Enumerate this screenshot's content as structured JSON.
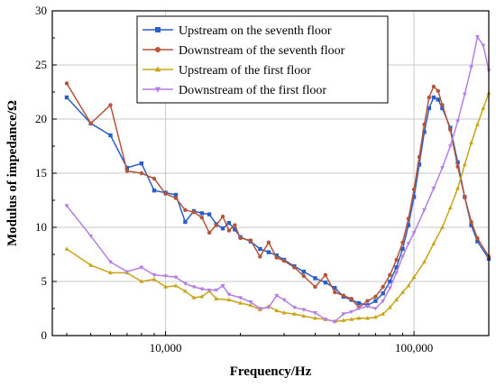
{
  "chart_data": {
    "type": "line",
    "xscale": "log",
    "xlim": [
      3500,
      200000
    ],
    "ylim": [
      0,
      30
    ],
    "xlabel": "Frequency/Hz",
    "ylabel": "Modulus of impedance/Ω",
    "x_ticks": [
      {
        "value": 10000,
        "label": "10,000"
      },
      {
        "value": 100000,
        "label": "100,000"
      }
    ],
    "y_ticks": [
      0,
      5,
      10,
      15,
      20,
      25,
      30
    ],
    "grid": true,
    "legend_position": "top-right",
    "series": [
      {
        "name": "Upstream on the seventh floor",
        "color": "#2a5fc8",
        "marker": "square",
        "points": [
          [
            4000,
            22.0
          ],
          [
            5000,
            19.6
          ],
          [
            6000,
            18.5
          ],
          [
            7000,
            15.5
          ],
          [
            8000,
            15.9
          ],
          [
            9000,
            13.4
          ],
          [
            10000,
            13.2
          ],
          [
            11000,
            13.0
          ],
          [
            12000,
            10.5
          ],
          [
            13000,
            11.5
          ],
          [
            14000,
            11.3
          ],
          [
            15000,
            11.2
          ],
          [
            16000,
            10.3
          ],
          [
            17000,
            9.9
          ],
          [
            18000,
            10.4
          ],
          [
            19000,
            9.8
          ],
          [
            20000,
            9.1
          ],
          [
            22000,
            8.7
          ],
          [
            24000,
            8.0
          ],
          [
            26000,
            7.7
          ],
          [
            28000,
            7.4
          ],
          [
            30000,
            7.0
          ],
          [
            33000,
            6.4
          ],
          [
            36000,
            5.9
          ],
          [
            40000,
            5.3
          ],
          [
            44000,
            4.9
          ],
          [
            48000,
            4.4
          ],
          [
            52000,
            3.6
          ],
          [
            56000,
            3.3
          ],
          [
            60000,
            3.0
          ],
          [
            65000,
            2.8
          ],
          [
            70000,
            3.2
          ],
          [
            75000,
            3.9
          ],
          [
            80000,
            5.0
          ],
          [
            85000,
            6.3
          ],
          [
            90000,
            8.0
          ],
          [
            95000,
            10.2
          ],
          [
            100000,
            12.8
          ],
          [
            105000,
            15.8
          ],
          [
            110000,
            18.8
          ],
          [
            115000,
            21.0
          ],
          [
            120000,
            22.0
          ],
          [
            125000,
            21.8
          ],
          [
            130000,
            21.0
          ],
          [
            140000,
            19.2
          ],
          [
            150000,
            16.0
          ],
          [
            160000,
            12.8
          ],
          [
            170000,
            10.2
          ],
          [
            180000,
            8.7
          ],
          [
            200000,
            7.1
          ]
        ]
      },
      {
        "name": "Downstream of the seventh floor",
        "color": "#b4553a",
        "marker": "circle",
        "points": [
          [
            4000,
            23.3
          ],
          [
            5000,
            19.6
          ],
          [
            6000,
            21.3
          ],
          [
            7000,
            15.2
          ],
          [
            8000,
            15.0
          ],
          [
            9000,
            14.5
          ],
          [
            10000,
            13.1
          ],
          [
            11000,
            12.7
          ],
          [
            12000,
            11.6
          ],
          [
            13000,
            11.4
          ],
          [
            14000,
            10.9
          ],
          [
            15000,
            9.5
          ],
          [
            16000,
            10.2
          ],
          [
            17000,
            11.0
          ],
          [
            18000,
            9.7
          ],
          [
            19000,
            10.2
          ],
          [
            20000,
            9.0
          ],
          [
            22000,
            8.8
          ],
          [
            24000,
            7.3
          ],
          [
            26000,
            8.6
          ],
          [
            28000,
            7.2
          ],
          [
            30000,
            6.9
          ],
          [
            33000,
            6.3
          ],
          [
            36000,
            5.5
          ],
          [
            40000,
            4.5
          ],
          [
            44000,
            5.6
          ],
          [
            48000,
            4.0
          ],
          [
            52000,
            3.7
          ],
          [
            56000,
            3.4
          ],
          [
            60000,
            2.6
          ],
          [
            65000,
            3.2
          ],
          [
            70000,
            3.6
          ],
          [
            75000,
            4.5
          ],
          [
            80000,
            5.6
          ],
          [
            85000,
            7.0
          ],
          [
            90000,
            8.6
          ],
          [
            95000,
            10.8
          ],
          [
            100000,
            13.5
          ],
          [
            105000,
            16.5
          ],
          [
            110000,
            19.5
          ],
          [
            115000,
            22.0
          ],
          [
            120000,
            23.0
          ],
          [
            125000,
            22.6
          ],
          [
            130000,
            21.3
          ],
          [
            140000,
            19.0
          ],
          [
            150000,
            15.6
          ],
          [
            160000,
            12.8
          ],
          [
            170000,
            10.5
          ],
          [
            180000,
            9.0
          ],
          [
            200000,
            7.3
          ]
        ]
      },
      {
        "name": "Upstream of the first floor",
        "color": "#c8a419",
        "marker": "triangle",
        "points": [
          [
            4000,
            8.0
          ],
          [
            5000,
            6.5
          ],
          [
            6000,
            5.8
          ],
          [
            7000,
            5.8
          ],
          [
            8000,
            5.0
          ],
          [
            9000,
            5.2
          ],
          [
            10000,
            4.5
          ],
          [
            11000,
            4.6
          ],
          [
            12000,
            4.1
          ],
          [
            13000,
            3.5
          ],
          [
            14000,
            3.6
          ],
          [
            15000,
            4.1
          ],
          [
            16000,
            3.4
          ],
          [
            18000,
            3.3
          ],
          [
            20000,
            3.0
          ],
          [
            22000,
            2.8
          ],
          [
            24000,
            2.4
          ],
          [
            26000,
            2.7
          ],
          [
            28000,
            2.3
          ],
          [
            30000,
            2.1
          ],
          [
            33000,
            2.0
          ],
          [
            36000,
            1.8
          ],
          [
            40000,
            1.6
          ],
          [
            44000,
            1.5
          ],
          [
            48000,
            1.3
          ],
          [
            52000,
            1.4
          ],
          [
            56000,
            1.5
          ],
          [
            60000,
            1.6
          ],
          [
            65000,
            1.6
          ],
          [
            70000,
            1.7
          ],
          [
            75000,
            2.0
          ],
          [
            80000,
            2.6
          ],
          [
            85000,
            3.3
          ],
          [
            90000,
            4.0
          ],
          [
            95000,
            4.6
          ],
          [
            100000,
            5.4
          ],
          [
            110000,
            6.8
          ],
          [
            120000,
            8.5
          ],
          [
            130000,
            10.0
          ],
          [
            140000,
            11.8
          ],
          [
            150000,
            13.6
          ],
          [
            160000,
            15.8
          ],
          [
            170000,
            17.8
          ],
          [
            180000,
            19.5
          ],
          [
            190000,
            21.0
          ],
          [
            200000,
            22.4
          ]
        ]
      },
      {
        "name": "Downstream of the first floor",
        "color": "#b57ee6",
        "marker": "triangle-down",
        "points": [
          [
            4000,
            12.0
          ],
          [
            5000,
            9.2
          ],
          [
            6000,
            6.8
          ],
          [
            7000,
            5.9
          ],
          [
            8000,
            6.3
          ],
          [
            9000,
            5.6
          ],
          [
            10000,
            5.5
          ],
          [
            11000,
            5.4
          ],
          [
            12000,
            4.8
          ],
          [
            13000,
            4.5
          ],
          [
            14000,
            4.3
          ],
          [
            15000,
            4.2
          ],
          [
            16000,
            4.2
          ],
          [
            17000,
            4.6
          ],
          [
            18000,
            3.8
          ],
          [
            20000,
            3.5
          ],
          [
            22000,
            3.1
          ],
          [
            24000,
            2.5
          ],
          [
            26000,
            2.6
          ],
          [
            28000,
            3.7
          ],
          [
            30000,
            3.3
          ],
          [
            33000,
            2.6
          ],
          [
            36000,
            2.4
          ],
          [
            40000,
            2.1
          ],
          [
            44000,
            1.5
          ],
          [
            48000,
            1.3
          ],
          [
            52000,
            2.0
          ],
          [
            56000,
            2.2
          ],
          [
            60000,
            2.5
          ],
          [
            65000,
            2.7
          ],
          [
            70000,
            2.5
          ],
          [
            75000,
            3.2
          ],
          [
            80000,
            4.4
          ],
          [
            85000,
            5.8
          ],
          [
            90000,
            7.3
          ],
          [
            95000,
            8.5
          ],
          [
            100000,
            9.5
          ],
          [
            110000,
            11.6
          ],
          [
            120000,
            13.6
          ],
          [
            130000,
            15.5
          ],
          [
            140000,
            17.5
          ],
          [
            150000,
            19.8
          ],
          [
            160000,
            22.3
          ],
          [
            170000,
            24.8
          ],
          [
            180000,
            27.6
          ],
          [
            190000,
            26.8
          ],
          [
            200000,
            24.5
          ]
        ]
      }
    ]
  }
}
